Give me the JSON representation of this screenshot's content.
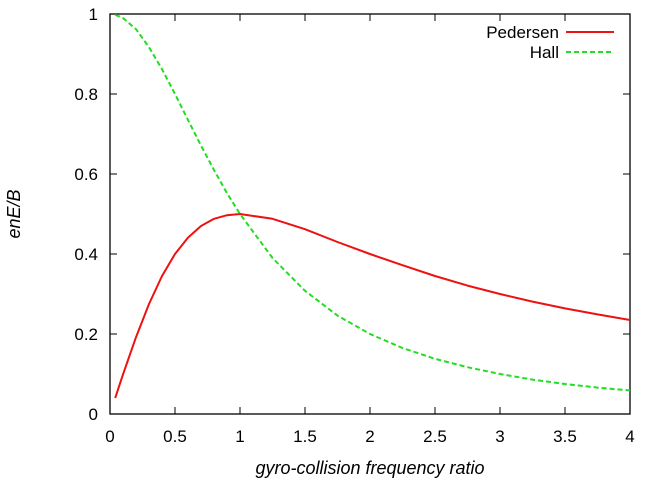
{
  "chart_data": {
    "type": "line",
    "title": "",
    "xlabel": "gyro-collision frequency ratio",
    "ylabel": "enE/B",
    "xlim": [
      0,
      4
    ],
    "ylim": [
      0,
      1
    ],
    "xticks": [
      "0",
      "0.5",
      "1",
      "1.5",
      "2",
      "2.5",
      "3",
      "3.5",
      "4"
    ],
    "yticks": [
      "0",
      "0.2",
      "0.4",
      "0.6",
      "0.8",
      "1"
    ],
    "grid": false,
    "legend_position": "top-right",
    "series": [
      {
        "name": "Pedersen",
        "color": "#ee1111",
        "dash": "solid",
        "x": [
          0.04,
          0.1,
          0.2,
          0.3,
          0.4,
          0.5,
          0.6,
          0.7,
          0.8,
          0.9,
          1.0,
          1.25,
          1.5,
          1.75,
          2.0,
          2.25,
          2.5,
          2.75,
          3.0,
          3.25,
          3.5,
          3.75,
          4.0
        ],
        "y": [
          0.04,
          0.099,
          0.192,
          0.275,
          0.345,
          0.4,
          0.441,
          0.47,
          0.488,
          0.497,
          0.5,
          0.488,
          0.462,
          0.43,
          0.4,
          0.372,
          0.345,
          0.321,
          0.3,
          0.281,
          0.264,
          0.249,
          0.235
        ]
      },
      {
        "name": "Hall",
        "color": "#22dd22",
        "dash": "dashed",
        "x": [
          0.04,
          0.1,
          0.2,
          0.3,
          0.4,
          0.5,
          0.6,
          0.7,
          0.8,
          0.9,
          1.0,
          1.25,
          1.5,
          1.75,
          2.0,
          2.25,
          2.5,
          2.75,
          3.0,
          3.25,
          3.5,
          3.75,
          4.0
        ],
        "y": [
          0.998,
          0.99,
          0.962,
          0.917,
          0.862,
          0.8,
          0.735,
          0.671,
          0.61,
          0.552,
          0.5,
          0.39,
          0.308,
          0.246,
          0.2,
          0.165,
          0.138,
          0.117,
          0.1,
          0.086,
          0.075,
          0.066,
          0.059
        ]
      }
    ]
  }
}
